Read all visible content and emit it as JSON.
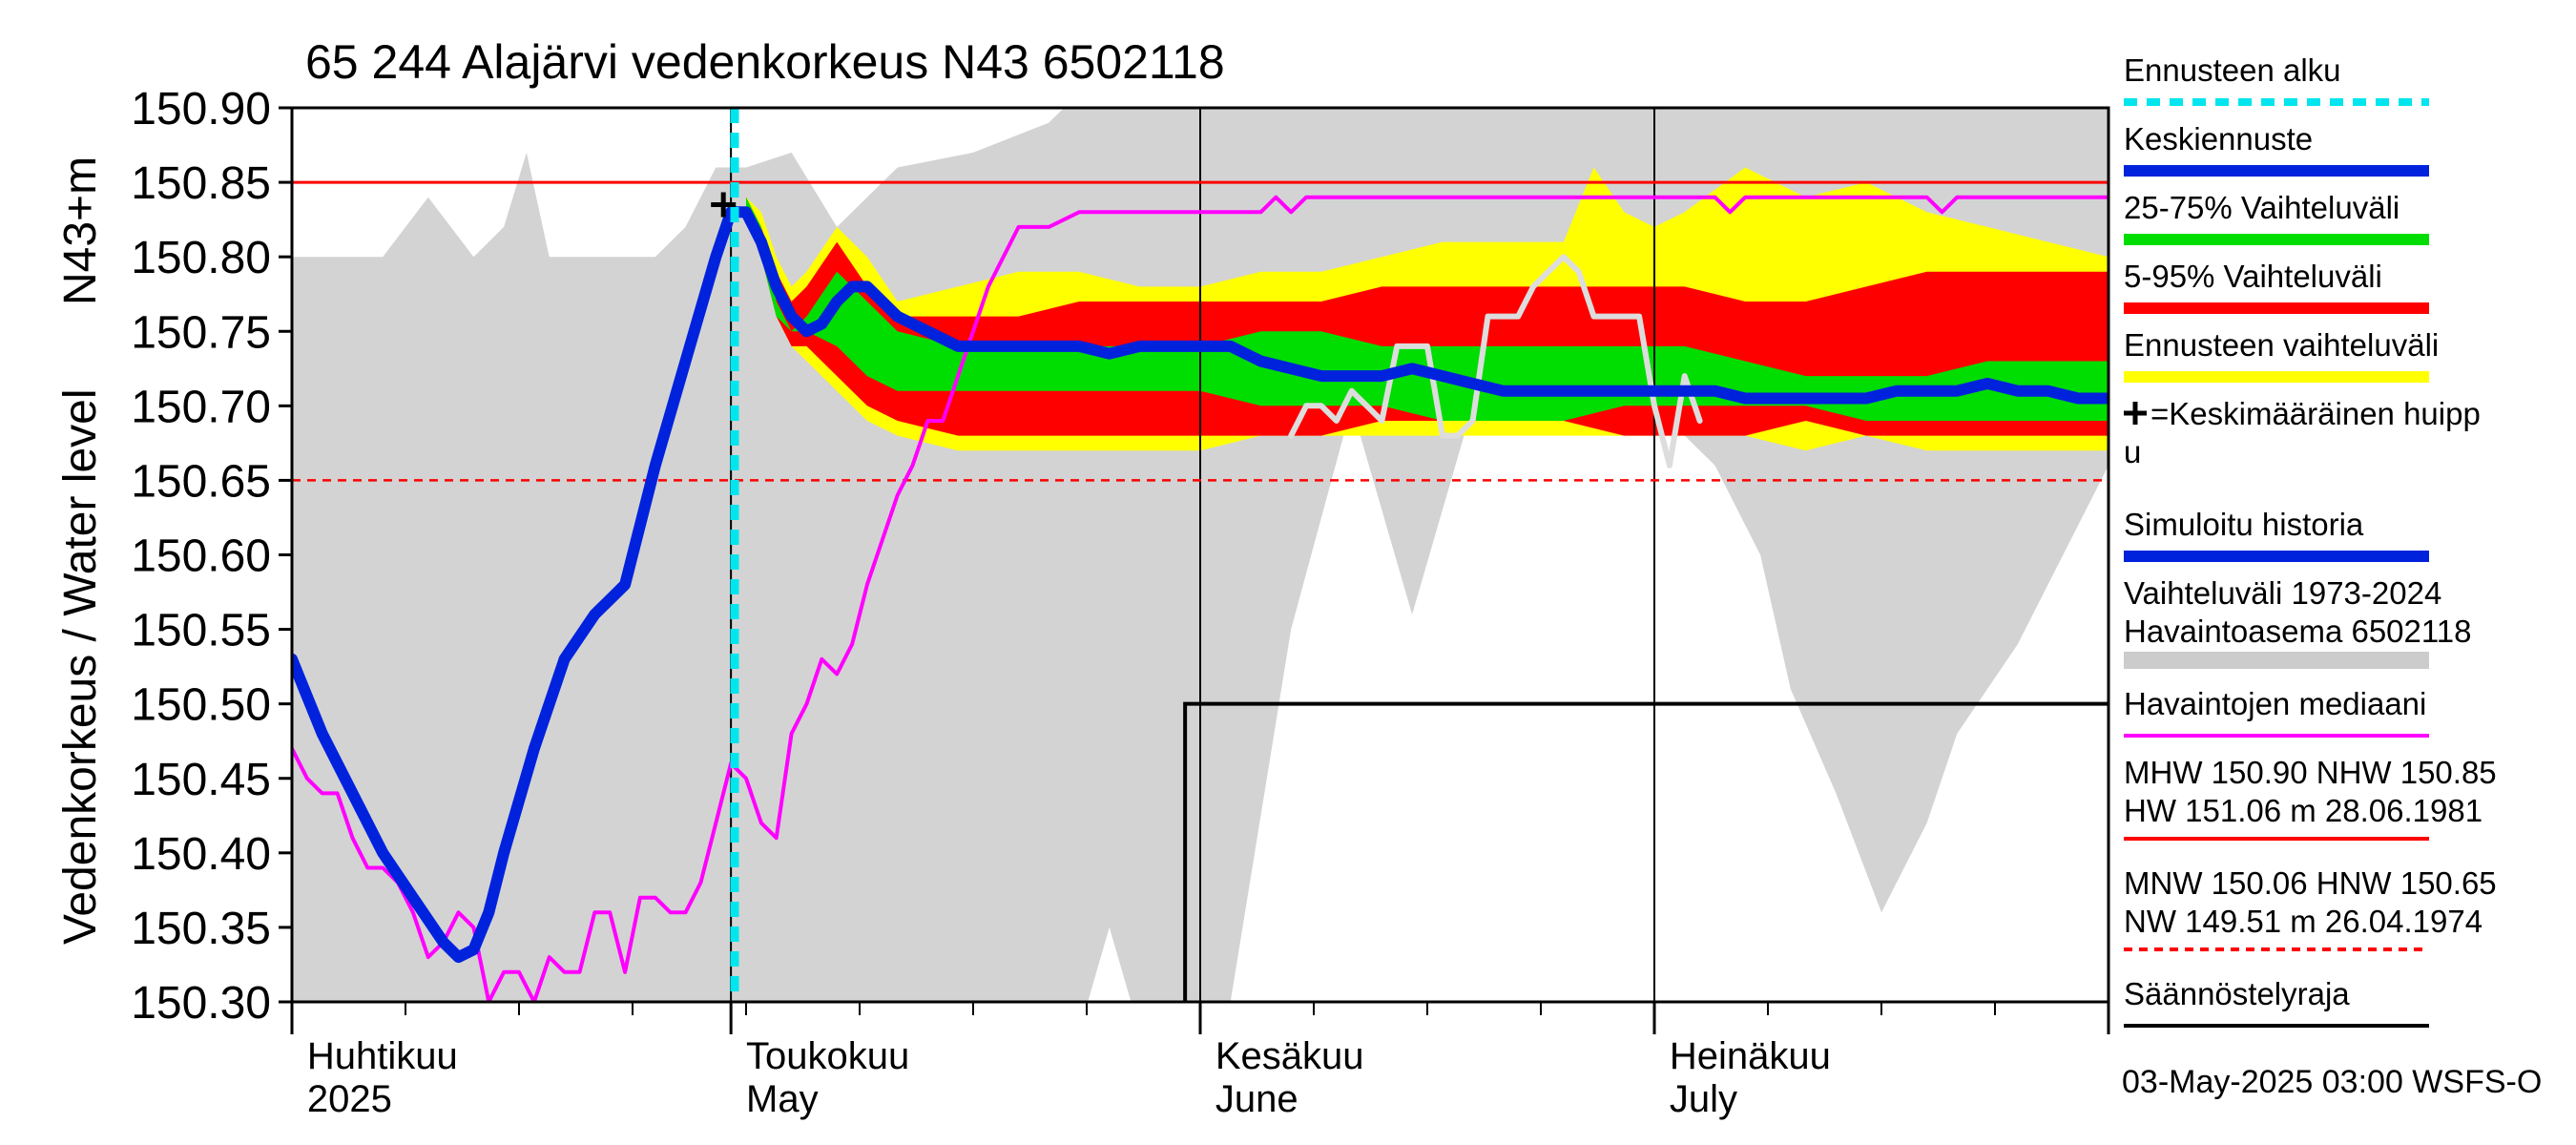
{
  "chart_data": {
    "type": "line",
    "title": "65 244 Alajärvi vedenkorkeus N43 6502118",
    "ylabel_left": "Vedenkorkeus / Water level",
    "ylabel_unit": "N43+m",
    "ylim": [
      150.3,
      150.9
    ],
    "yticks": [
      "150.90",
      "150.85",
      "150.80",
      "150.75",
      "150.70",
      "150.65",
      "150.60",
      "150.55",
      "150.50",
      "150.45",
      "150.40",
      "150.35",
      "150.30"
    ],
    "x_range_days": [
      0,
      120
    ],
    "x_origin_date": "2025-04-01",
    "month_labels": [
      {
        "day": 1,
        "fi": "Huhtikuu",
        "en": "2025"
      },
      {
        "day": 30,
        "fi": "Toukokuu",
        "en": "May"
      },
      {
        "day": 61,
        "fi": "Kesäkuu",
        "en": "June"
      },
      {
        "day": 91,
        "fi": "Heinäkuu",
        "en": "July"
      }
    ],
    "month_boundaries": [
      0,
      29,
      60,
      90,
      120
    ],
    "forecast_start_day": 30,
    "reference_lines": {
      "NHW": 150.85,
      "HNW": 150.65
    },
    "mean_peak": {
      "day": 28.5,
      "value": 150.835
    },
    "regulation_limit": {
      "start_day": 59,
      "value": 150.5
    },
    "history_band": {
      "x": [
        0,
        6,
        9,
        12,
        14,
        15.5,
        17,
        19,
        24,
        26,
        28,
        30,
        33,
        36,
        40,
        45,
        50,
        52,
        54,
        56,
        58,
        60,
        62,
        66,
        70,
        74,
        78,
        80,
        82,
        88,
        90,
        94,
        97,
        99,
        102,
        105,
        108,
        110,
        114,
        117,
        120
      ],
      "upper": [
        150.8,
        150.8,
        150.84,
        150.8,
        150.82,
        150.87,
        150.8,
        150.8,
        150.8,
        150.82,
        150.86,
        150.86,
        150.87,
        150.82,
        150.86,
        150.87,
        150.89,
        150.91,
        150.91,
        150.91,
        150.91,
        150.91,
        150.91,
        150.91,
        150.91,
        150.91,
        150.91,
        150.91,
        150.91,
        150.91,
        150.91,
        150.91,
        150.91,
        150.91,
        150.91,
        150.91,
        150.91,
        150.91,
        150.91,
        150.91,
        150.91
      ],
      "lower": [
        150.3,
        150.3,
        150.3,
        150.3,
        150.3,
        150.3,
        150.3,
        150.3,
        150.3,
        150.3,
        150.3,
        150.3,
        150.3,
        150.3,
        150.3,
        150.3,
        150.3,
        150.28,
        150.35,
        150.28,
        150.28,
        150.28,
        150.3,
        150.55,
        150.7,
        150.56,
        150.7,
        150.72,
        150.72,
        150.74,
        150.7,
        150.66,
        150.6,
        150.51,
        150.44,
        150.36,
        150.42,
        150.48,
        150.54,
        150.6,
        150.66
      ]
    },
    "series": [
      {
        "name": "Ennusteen vaihteluväli",
        "role": "band",
        "color": "#ffff00",
        "x": [
          30,
          31,
          32,
          33,
          34,
          36,
          38,
          40,
          44,
          48,
          52,
          56,
          60,
          64,
          68,
          72,
          76,
          80,
          84,
          86,
          88,
          90,
          92,
          96,
          100,
          104,
          108,
          112,
          116,
          120
        ],
        "upper": [
          150.84,
          150.83,
          150.8,
          150.78,
          150.79,
          150.82,
          150.8,
          150.77,
          150.78,
          150.79,
          150.79,
          150.78,
          150.78,
          150.79,
          150.79,
          150.8,
          150.81,
          150.81,
          150.81,
          150.86,
          150.83,
          150.82,
          150.83,
          150.86,
          150.84,
          150.85,
          150.83,
          150.82,
          150.81,
          150.8
        ],
        "lower": [
          150.83,
          150.8,
          150.76,
          150.74,
          150.73,
          150.71,
          150.69,
          150.68,
          150.67,
          150.67,
          150.67,
          150.67,
          150.67,
          150.68,
          150.68,
          150.68,
          150.68,
          150.68,
          150.68,
          150.68,
          150.68,
          150.68,
          150.68,
          150.68,
          150.67,
          150.68,
          150.67,
          150.67,
          150.67,
          150.67
        ]
      },
      {
        "name": "5-95% Vaihteluväli",
        "role": "band",
        "color": "#ff0000",
        "x": [
          30,
          31,
          32,
          33,
          34,
          36,
          38,
          40,
          44,
          48,
          52,
          56,
          60,
          64,
          68,
          72,
          76,
          80,
          84,
          88,
          92,
          96,
          100,
          104,
          108,
          112,
          116,
          120
        ],
        "upper": [
          150.84,
          150.82,
          150.79,
          150.77,
          150.78,
          150.81,
          150.78,
          150.76,
          150.76,
          150.76,
          150.77,
          150.77,
          150.77,
          150.77,
          150.77,
          150.78,
          150.78,
          150.78,
          150.78,
          150.78,
          150.78,
          150.77,
          150.77,
          150.78,
          150.79,
          150.79,
          150.79,
          150.79
        ],
        "lower": [
          150.83,
          150.8,
          150.76,
          150.74,
          150.74,
          150.72,
          150.7,
          150.69,
          150.68,
          150.68,
          150.68,
          150.68,
          150.68,
          150.68,
          150.68,
          150.69,
          150.69,
          150.69,
          150.69,
          150.68,
          150.68,
          150.68,
          150.69,
          150.68,
          150.68,
          150.68,
          150.68,
          150.68
        ]
      },
      {
        "name": "25-75% Vaihteluväli",
        "role": "band",
        "color": "#00dd00",
        "x": [
          30,
          31,
          32,
          33,
          34,
          36,
          38,
          40,
          44,
          48,
          52,
          56,
          60,
          64,
          68,
          72,
          76,
          80,
          84,
          88,
          92,
          96,
          100,
          104,
          108,
          112,
          116,
          120
        ],
        "upper": [
          150.84,
          150.82,
          150.77,
          150.75,
          150.76,
          150.79,
          150.77,
          150.75,
          150.74,
          150.74,
          150.74,
          150.74,
          150.74,
          150.75,
          150.75,
          150.74,
          150.74,
          150.74,
          150.74,
          150.74,
          150.74,
          150.73,
          150.72,
          150.72,
          150.72,
          150.73,
          150.73,
          150.73
        ],
        "lower": [
          150.83,
          150.8,
          150.76,
          150.75,
          150.75,
          150.74,
          150.72,
          150.71,
          150.71,
          150.71,
          150.71,
          150.71,
          150.71,
          150.7,
          150.7,
          150.7,
          150.69,
          150.69,
          150.69,
          150.7,
          150.7,
          150.7,
          150.7,
          150.69,
          150.69,
          150.69,
          150.69,
          150.69
        ]
      },
      {
        "name": "Vaihteluväli 1973-2024 Havaintoasema 6502118 (observed max line)",
        "role": "line",
        "color": "#dddddd",
        "x": [
          66,
          67,
          68,
          69,
          70,
          71,
          72,
          73,
          74,
          75,
          76,
          77,
          78,
          79,
          80,
          81,
          82,
          83,
          84,
          85,
          86,
          87,
          88,
          89,
          90,
          91,
          92,
          93
        ],
        "values": [
          150.68,
          150.7,
          150.7,
          150.69,
          150.71,
          150.7,
          150.69,
          150.74,
          150.74,
          150.74,
          150.68,
          150.68,
          150.69,
          150.76,
          150.76,
          150.76,
          150.78,
          150.79,
          150.8,
          150.79,
          150.76,
          150.76,
          150.76,
          150.76,
          150.7,
          150.66,
          150.72,
          150.69
        ]
      },
      {
        "name": "Havaintojen mediaani",
        "role": "line",
        "color": "#ff00ff",
        "x": [
          0,
          1,
          2,
          3,
          4,
          5,
          6,
          7,
          8,
          9,
          10,
          11,
          12,
          13,
          14,
          15,
          16,
          17,
          18,
          19,
          20,
          21,
          22,
          23,
          24,
          25,
          26,
          27,
          28,
          29,
          30,
          31,
          32,
          33,
          34,
          35,
          36,
          37,
          38,
          39,
          40,
          41,
          42,
          43,
          44,
          45,
          46,
          47,
          48,
          50,
          52,
          54,
          56,
          58,
          60,
          62,
          64,
          65,
          66,
          67,
          68,
          70,
          72,
          76,
          80,
          84,
          86,
          88,
          90,
          94,
          95,
          96,
          100,
          104,
          108,
          109,
          110,
          114,
          118,
          120
        ],
        "values": [
          150.47,
          150.45,
          150.44,
          150.44,
          150.41,
          150.39,
          150.39,
          150.38,
          150.36,
          150.33,
          150.34,
          150.36,
          150.35,
          150.3,
          150.32,
          150.32,
          150.3,
          150.33,
          150.32,
          150.32,
          150.36,
          150.36,
          150.32,
          150.37,
          150.37,
          150.36,
          150.36,
          150.38,
          150.42,
          150.46,
          150.45,
          150.42,
          150.41,
          150.48,
          150.5,
          150.53,
          150.52,
          150.54,
          150.58,
          150.61,
          150.64,
          150.66,
          150.69,
          150.69,
          150.72,
          150.75,
          150.78,
          150.8,
          150.82,
          150.82,
          150.83,
          150.83,
          150.83,
          150.83,
          150.83,
          150.83,
          150.83,
          150.84,
          150.83,
          150.84,
          150.84,
          150.84,
          150.84,
          150.84,
          150.84,
          150.84,
          150.84,
          150.84,
          150.84,
          150.84,
          150.83,
          150.84,
          150.84,
          150.84,
          150.84,
          150.83,
          150.84,
          150.84,
          150.84,
          150.84
        ]
      },
      {
        "name": "Simuloitu historia / Keskiennuste",
        "role": "line",
        "color": "#0022dd",
        "x": [
          0,
          2,
          4,
          6,
          8,
          10,
          11,
          12,
          13,
          14,
          16,
          18,
          20,
          22,
          24,
          26,
          28,
          29,
          30,
          31,
          32,
          33,
          34,
          35,
          36,
          37,
          38,
          40,
          42,
          44,
          46,
          48,
          50,
          52,
          54,
          56,
          58,
          60,
          62,
          64,
          66,
          68,
          70,
          72,
          74,
          76,
          78,
          80,
          82,
          84,
          86,
          88,
          90,
          92,
          94,
          96,
          98,
          100,
          102,
          104,
          106,
          108,
          110,
          112,
          114,
          116,
          118,
          120
        ],
        "values": [
          150.53,
          150.48,
          150.44,
          150.4,
          150.37,
          150.34,
          150.33,
          150.335,
          150.36,
          150.4,
          150.47,
          150.53,
          150.56,
          150.58,
          150.66,
          150.73,
          150.8,
          150.83,
          150.83,
          150.81,
          150.78,
          150.76,
          150.75,
          150.755,
          150.77,
          150.78,
          150.78,
          150.76,
          150.75,
          150.74,
          150.74,
          150.74,
          150.74,
          150.74,
          150.735,
          150.74,
          150.74,
          150.74,
          150.74,
          150.73,
          150.725,
          150.72,
          150.72,
          150.72,
          150.725,
          150.72,
          150.715,
          150.71,
          150.71,
          150.71,
          150.71,
          150.71,
          150.71,
          150.71,
          150.71,
          150.705,
          150.705,
          150.705,
          150.705,
          150.705,
          150.71,
          150.71,
          150.71,
          150.715,
          150.71,
          150.71,
          150.705,
          150.705
        ]
      }
    ],
    "legend": [
      {
        "label": "Ennusteen alku",
        "style": "dotted",
        "color": "#00e5ee"
      },
      {
        "label": "Keskiennuste",
        "style": "line-thick",
        "color": "#0022dd"
      },
      {
        "label": "25-75% Vaihteluväli",
        "style": "line-thick",
        "color": "#00dd00"
      },
      {
        "label": "5-95% Vaihteluväli",
        "style": "line-thick",
        "color": "#ff0000"
      },
      {
        "label": "Ennusteen vaihteluväli",
        "style": "line-thick",
        "color": "#ffff00"
      },
      {
        "label": "=Keskimääräinen huipp",
        "label2": "u",
        "style": "cross",
        "color": "#000000"
      },
      {
        "label": "Simuloitu historia",
        "style": "line-thick",
        "color": "#0022dd"
      },
      {
        "label": "Vaihteluväli 1973-2024",
        "label2": " Havaintoasema 6502118",
        "style": "band",
        "color": "#cccccc"
      },
      {
        "label": "Havaintojen mediaani",
        "style": "line",
        "color": "#ff00ff"
      },
      {
        "label": "MHW 150.90 NHW 150.85",
        "label2": "HW 151.06 m 28.06.1981",
        "style": "line",
        "color": "#ff0000"
      },
      {
        "label": "MNW 150.06 HNW 150.65",
        "label2": "NW 149.51 m 26.04.1974",
        "style": "dashed",
        "color": "#ff0000"
      },
      {
        "label": "Säännöstelyraja",
        "style": "line",
        "color": "#000000"
      }
    ],
    "footer": "03-May-2025 03:00 WSFS-O"
  }
}
